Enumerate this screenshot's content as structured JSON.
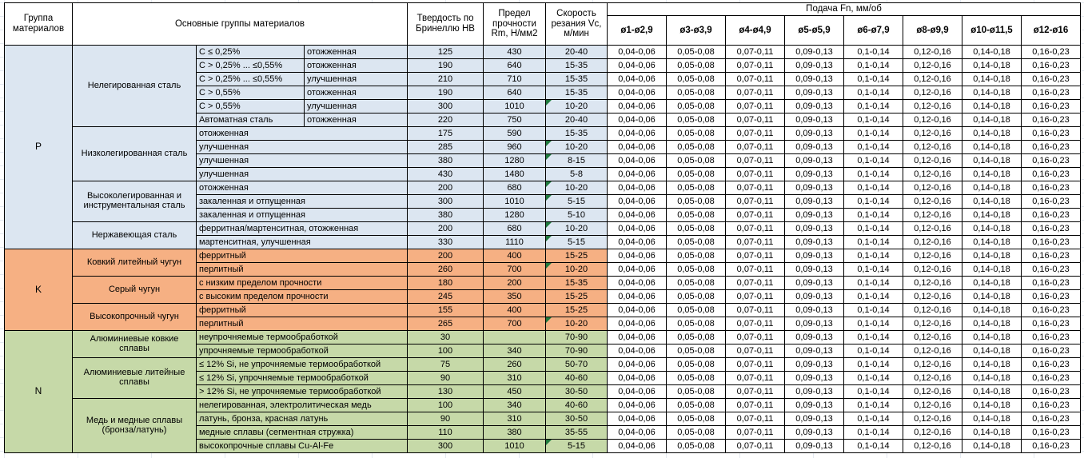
{
  "header": {
    "col_group": "Группа материалов",
    "col_main_groups": "Основные группы материалов",
    "col_hardness": "Твердость по Бринеллю HB",
    "col_strength": "Предел прочности Rm, Н/мм2",
    "col_speed": "Скорость резания Vc, м/мин",
    "feed_title": "Подача Fn, мм/об",
    "feed_cols": [
      "ø1-ø2,9",
      "ø3-ø3,9",
      "ø4-ø4,9",
      "ø5-ø5,9",
      "ø6-ø7,9",
      "ø8-ø9,9",
      "ø10-ø11,5",
      "ø12-ø16"
    ]
  },
  "feed_values_all_rows": [
    "0,04-0,06",
    "0,05-0,08",
    "0,07-0,11",
    "0,09-0,13",
    "0,1-0,14",
    "0,12-0,16",
    "0,14-0,18",
    "0,16-0,23"
  ],
  "note_marker_color": "#1f7a3d",
  "sections": [
    {
      "code": "P",
      "bg": "#DCE6F1",
      "groups": [
        {
          "name": "Нелегированная сталь",
          "rows": [
            {
              "cols": [
                "C ≤ 0,25%",
                "отожженная"
              ],
              "hb": "125",
              "rm": "430",
              "vc": "20-40",
              "note": false
            },
            {
              "cols": [
                "C > 0,25% ... ≤0,55%",
                "отожженная"
              ],
              "hb": "190",
              "rm": "640",
              "vc": "15-35",
              "note": false
            },
            {
              "cols": [
                "C > 0,25% ... ≤0,55%",
                "улучшенная"
              ],
              "hb": "210",
              "rm": "710",
              "vc": "15-35",
              "note": false
            },
            {
              "cols": [
                "C > 0,55%",
                "отожженная"
              ],
              "hb": "190",
              "rm": "640",
              "vc": "15-35",
              "note": false
            },
            {
              "cols": [
                "C > 0,55%",
                "улучшенная"
              ],
              "hb": "300",
              "rm": "1010",
              "vc": "10-20",
              "note": true
            },
            {
              "cols": [
                "Автоматная сталь",
                "отожженная"
              ],
              "hb": "220",
              "rm": "750",
              "vc": "20-40",
              "note": false
            }
          ]
        },
        {
          "name": "Низколегированная сталь",
          "rows": [
            {
              "cols": [
                "отожженная"
              ],
              "hb": "175",
              "rm": "590",
              "vc": "15-35",
              "note": false
            },
            {
              "cols": [
                "улучшенная"
              ],
              "hb": "285",
              "rm": "960",
              "vc": "10-20",
              "note": true
            },
            {
              "cols": [
                "улучшенная"
              ],
              "hb": "380",
              "rm": "1280",
              "vc": "8-15",
              "note": true
            },
            {
              "cols": [
                "улучшенная"
              ],
              "hb": "430",
              "rm": "1480",
              "vc": "5-8",
              "note": false
            }
          ]
        },
        {
          "name": "Высоколегированная и инструментальная сталь",
          "rows": [
            {
              "cols": [
                "отожженная"
              ],
              "hb": "200",
              "rm": "680",
              "vc": "10-20",
              "note": true
            },
            {
              "cols": [
                "закаленная и отпущенная"
              ],
              "hb": "300",
              "rm": "1010",
              "vc": "5-15",
              "note": true
            },
            {
              "cols": [
                "закаленная и отпущенная"
              ],
              "hb": "380",
              "rm": "1280",
              "vc": "5-10",
              "note": false
            }
          ]
        },
        {
          "name": "Нержавеющая сталь",
          "rows": [
            {
              "cols": [
                "ферритная/мартенситная, отожженная"
              ],
              "hb": "200",
              "rm": "680",
              "vc": "10-20",
              "note": true
            },
            {
              "cols": [
                "мартенситная, улучшенная"
              ],
              "hb": "330",
              "rm": "1110",
              "vc": "5-15",
              "note": true
            }
          ]
        }
      ]
    },
    {
      "code": "K",
      "bg": "#F6B083",
      "groups": [
        {
          "name": "Ковкий литейный чугун",
          "rows": [
            {
              "cols": [
                "ферритный"
              ],
              "hb": "200",
              "rm": "400",
              "vc": "15-25",
              "note": false
            },
            {
              "cols": [
                "перлитный"
              ],
              "hb": "260",
              "rm": "700",
              "vc": "10-20",
              "note": true
            }
          ]
        },
        {
          "name": "Серый чугун",
          "rows": [
            {
              "cols": [
                "с низким пределом прочности"
              ],
              "hb": "180",
              "rm": "200",
              "vc": "15-35",
              "note": false
            },
            {
              "cols": [
                "с высоким пределом прочности"
              ],
              "hb": "245",
              "rm": "350",
              "vc": "15-25",
              "note": false
            }
          ]
        },
        {
          "name": "Высокопрочный чугун",
          "rows": [
            {
              "cols": [
                "ферритный"
              ],
              "hb": "155",
              "rm": "400",
              "vc": "15-25",
              "note": false
            },
            {
              "cols": [
                "перлитный"
              ],
              "hb": "265",
              "rm": "700",
              "vc": "10-20",
              "note": true
            }
          ]
        }
      ]
    },
    {
      "code": "N",
      "bg": "#C6D9A8",
      "groups": [
        {
          "name": "Алюминиевые ковкие сплавы",
          "rows": [
            {
              "cols": [
                "неупрочняемые термообработкой"
              ],
              "hb": "30",
              "rm": "",
              "vc": "70-90",
              "note": false
            },
            {
              "cols": [
                "упрочняемые термообработкой"
              ],
              "hb": "100",
              "rm": "340",
              "vc": "70-90",
              "note": false
            }
          ]
        },
        {
          "name": "Алюминиевые литейные сплавы",
          "rows": [
            {
              "cols": [
                "≤ 12% Si, не упрочняемые термообработкой"
              ],
              "hb": "75",
              "rm": "260",
              "vc": "50-70",
              "note": false
            },
            {
              "cols": [
                "≤ 12% Si, упрочняемые термообработкой"
              ],
              "hb": "90",
              "rm": "310",
              "vc": "40-60",
              "note": false
            },
            {
              "cols": [
                "> 12% Si, не упрочняемые термообработкой"
              ],
              "hb": "130",
              "rm": "450",
              "vc": "30-50",
              "note": false
            }
          ]
        },
        {
          "name": "Медь и медные сплавы (бронза/латунь)",
          "rows": [
            {
              "cols": [
                "нелегированная, электролитическая медь"
              ],
              "hb": "100",
              "rm": "340",
              "vc": "40-60",
              "note": false
            },
            {
              "cols": [
                "латунь, бронза, красная латунь"
              ],
              "hb": "90",
              "rm": "310",
              "vc": "30-50",
              "note": false
            },
            {
              "cols": [
                "медные сплавы (сегментная стружка)"
              ],
              "hb": "110",
              "rm": "380",
              "vc": "35-55",
              "note": false
            },
            {
              "cols": [
                "высокопрочные сплавы Cu-Al-Fe"
              ],
              "hb": "300",
              "rm": "1010",
              "vc": "5-15",
              "note": true
            }
          ]
        }
      ]
    }
  ]
}
